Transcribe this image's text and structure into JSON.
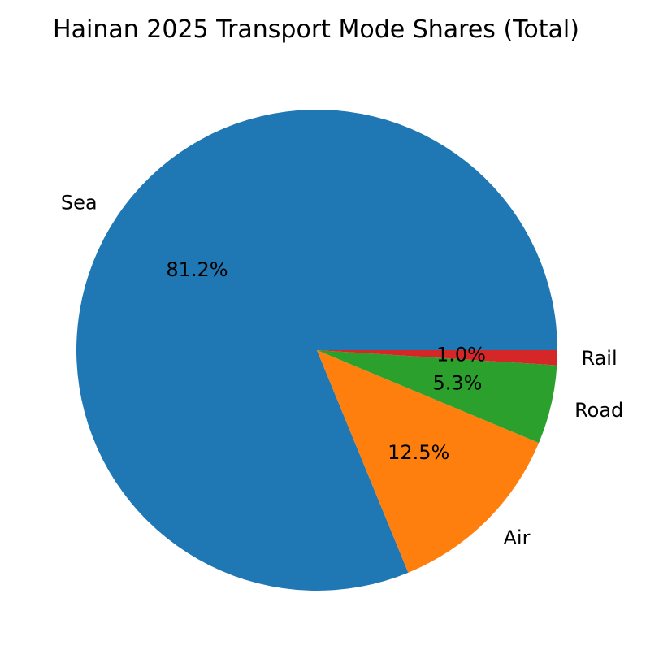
{
  "chart_data": {
    "type": "pie",
    "title": "Hainan 2025 Transport Mode Shares (Total)",
    "categories": [
      "Sea",
      "Air",
      "Road",
      "Rail"
    ],
    "values": [
      81.2,
      12.5,
      5.3,
      1.0
    ],
    "percent_labels": [
      "81.2%",
      "12.5%",
      "5.3%",
      "1.0%"
    ],
    "colors": [
      "#1f77b4",
      "#ff7f0e",
      "#2ca02c",
      "#d62728"
    ],
    "start_angle_deg": 0,
    "direction": "counterclockwise"
  }
}
